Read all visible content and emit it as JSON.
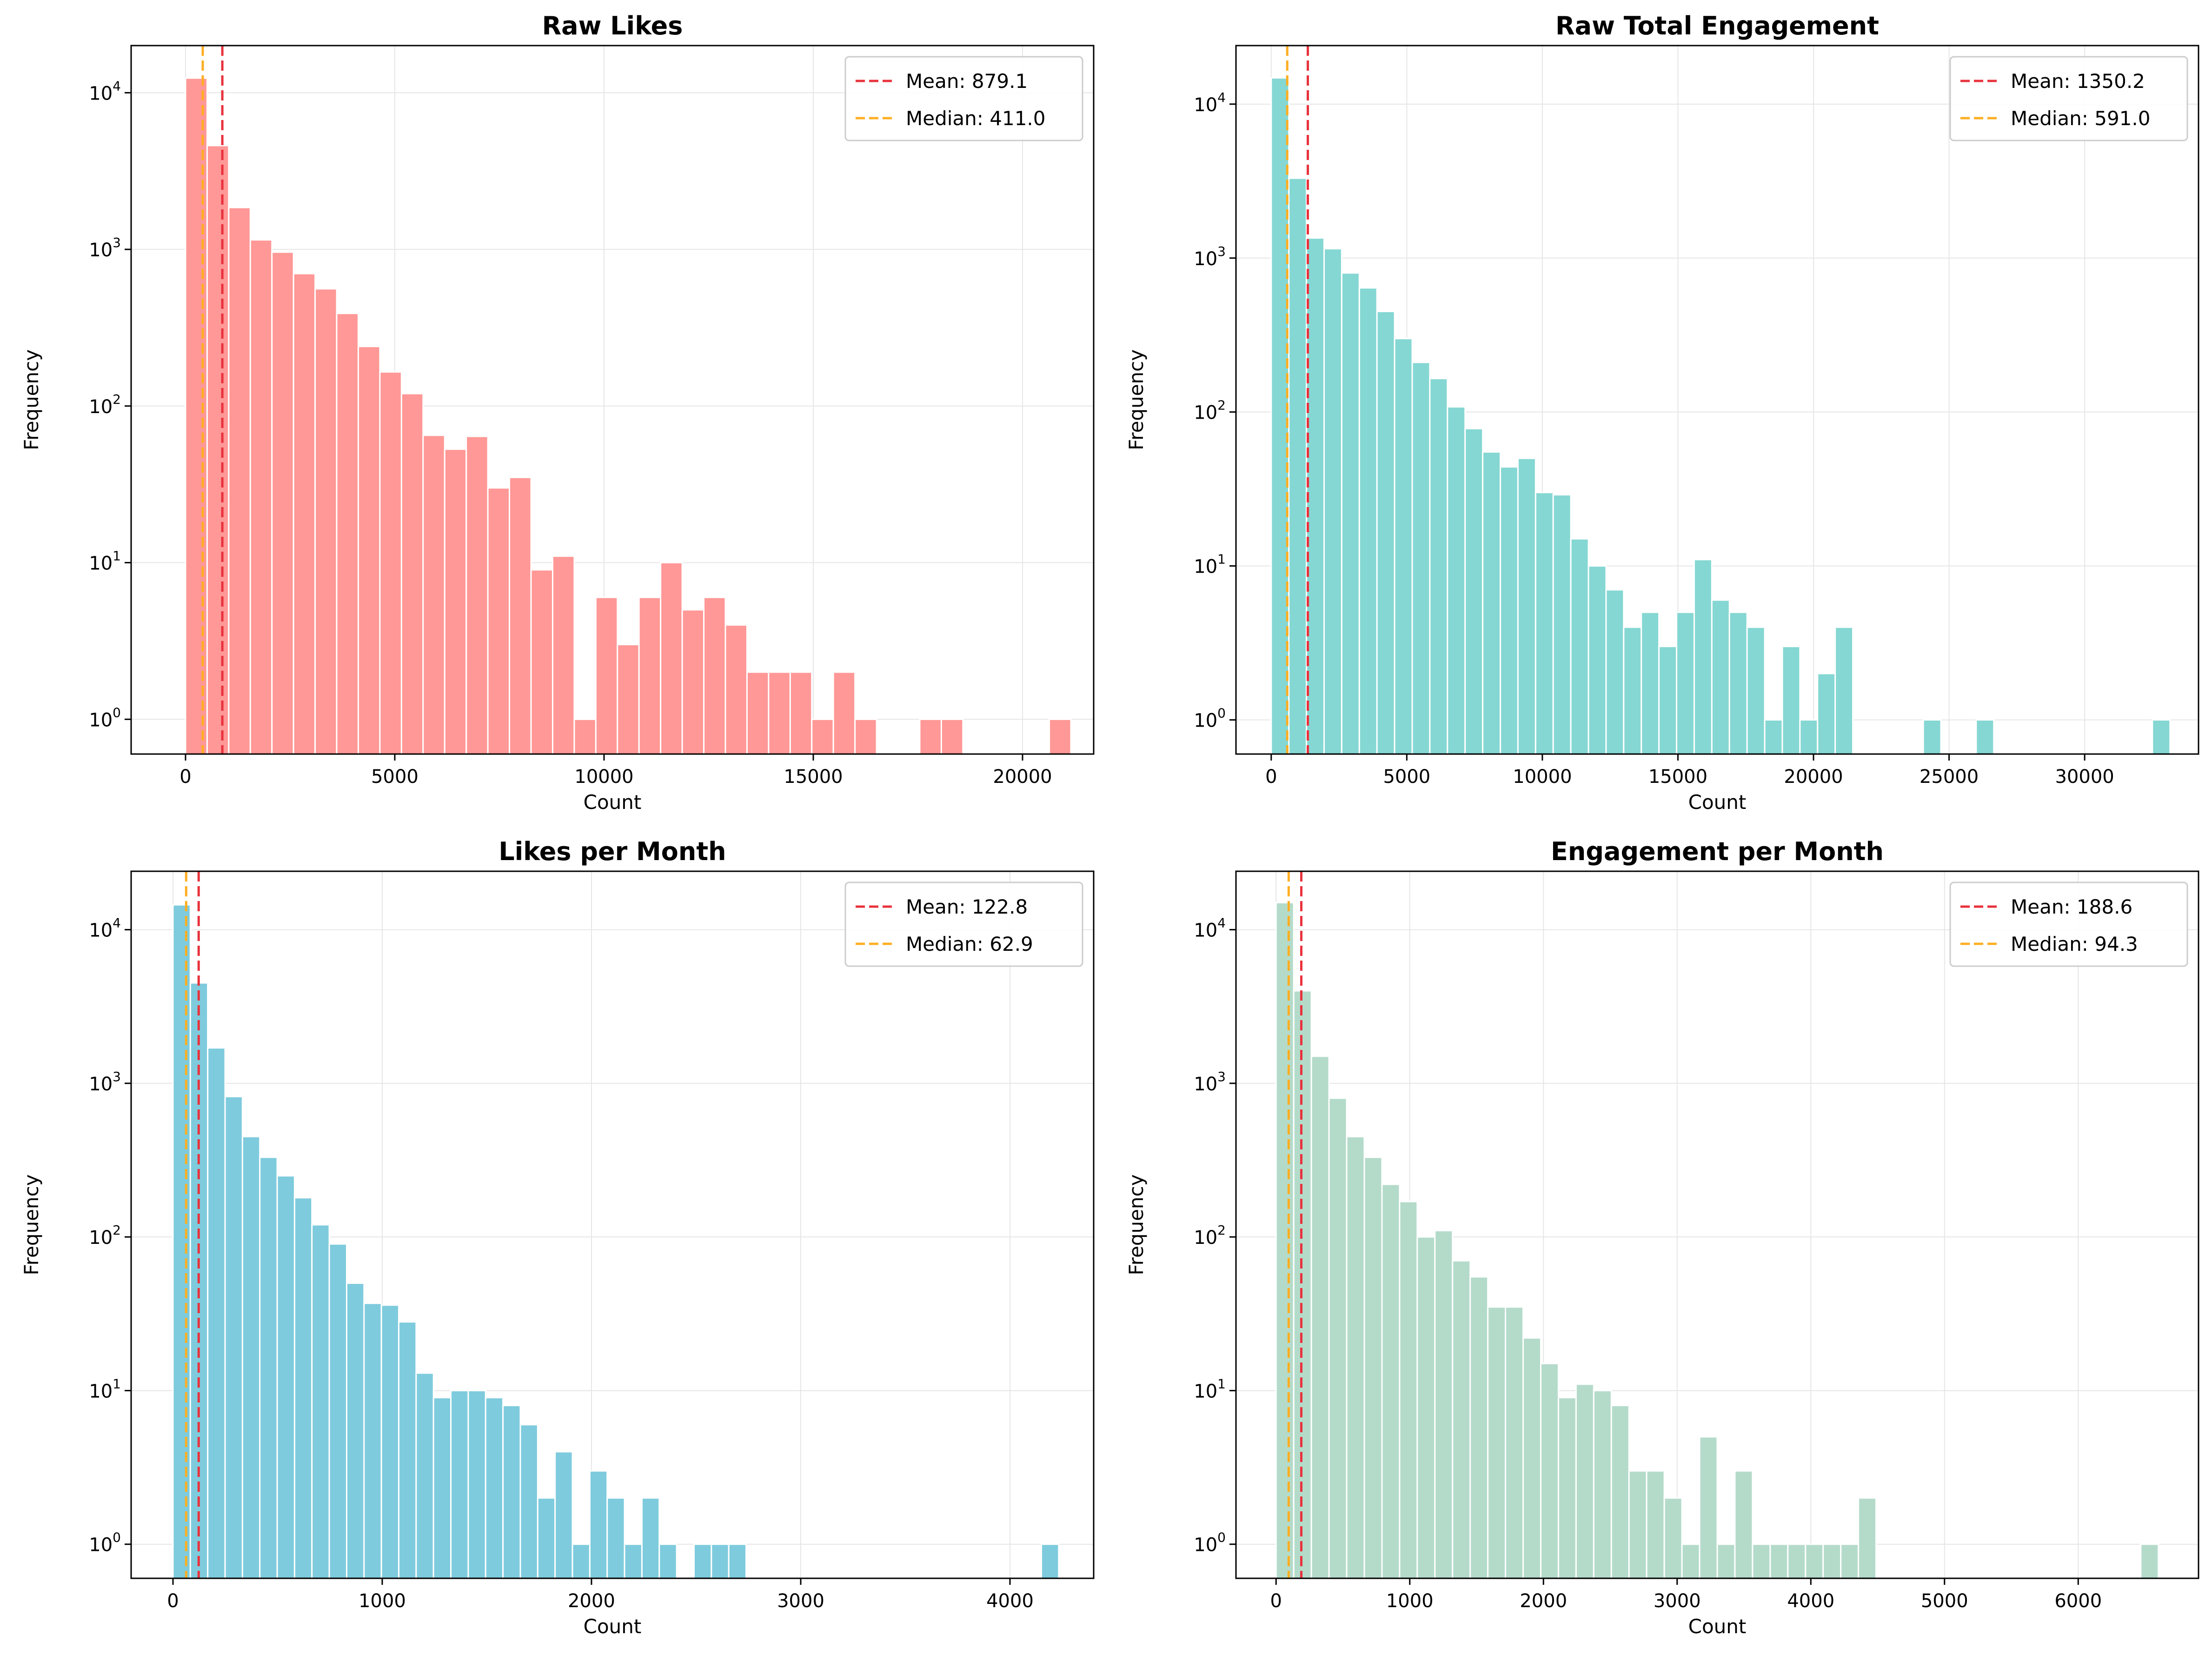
{
  "chart_data": [
    {
      "type": "bar",
      "title": "Raw Likes",
      "xlabel": "Count",
      "ylabel": "Frequency",
      "yscale": "log",
      "ylim": [
        0.6,
        20000
      ],
      "xlim": [
        -1300,
        21700
      ],
      "xticks": [
        0,
        5000,
        10000,
        15000,
        20000
      ],
      "yticks": [
        1,
        10,
        100,
        1000,
        10000
      ],
      "grid": true,
      "legend_position": "top-right",
      "color": "#ff9896",
      "bin_start": 0,
      "bin_width": 516,
      "values": [
        12400,
        4600,
        1850,
        1150,
        960,
        700,
        560,
        390,
        240,
        165,
        120,
        65,
        53,
        64,
        30,
        35,
        9,
        11,
        1,
        6,
        3,
        6,
        10,
        5,
        6,
        4,
        2,
        2,
        2,
        1,
        2,
        1,
        0,
        0,
        1,
        1,
        0,
        0,
        0,
        0,
        1
      ],
      "reference_lines": [
        {
          "label": "Mean: 879.1",
          "value": 879.1,
          "color": "#e8323c"
        },
        {
          "label": "Median: 411.0",
          "value": 411.0,
          "color": "#ffae22"
        }
      ]
    },
    {
      "type": "bar",
      "title": "Raw Total Engagement",
      "xlabel": "Count",
      "ylabel": "Frequency",
      "yscale": "log",
      "ylim": [
        0.6,
        24000
      ],
      "xlim": [
        -1300,
        34200
      ],
      "xticks": [
        0,
        5000,
        10000,
        15000,
        20000,
        25000,
        30000
      ],
      "yticks": [
        1,
        10,
        100,
        1000,
        10000
      ],
      "grid": true,
      "legend_position": "top-right",
      "color": "#85d7d3",
      "bin_start": 0,
      "bin_width": 650,
      "values": [
        14800,
        3300,
        1350,
        1150,
        800,
        640,
        450,
        300,
        210,
        165,
        108,
        78,
        55,
        44,
        50,
        30,
        29,
        15,
        10,
        7,
        4,
        5,
        3,
        5,
        11,
        6,
        5,
        4,
        1,
        3,
        1,
        2,
        4,
        0,
        0,
        0,
        0,
        1,
        0,
        0,
        1,
        0,
        0,
        0,
        0,
        0,
        0,
        0,
        0,
        0,
        1
      ],
      "reference_lines": [
        {
          "label": "Mean: 1350.2",
          "value": 1350.2,
          "color": "#e8323c"
        },
        {
          "label": "Median: 591.0",
          "value": 591.0,
          "color": "#ffae22"
        }
      ]
    },
    {
      "type": "bar",
      "title": "Likes per Month",
      "xlabel": "Count",
      "ylabel": "Frequency",
      "yscale": "log",
      "ylim": [
        0.6,
        24000
      ],
      "xlim": [
        -200,
        4400
      ],
      "xticks": [
        0,
        1000,
        2000,
        3000,
        4000
      ],
      "yticks": [
        1,
        10,
        100,
        1000,
        10000
      ],
      "grid": true,
      "legend_position": "top-right",
      "color": "#7ecbdd",
      "bin_start": 0,
      "bin_width": 83,
      "values": [
        14500,
        4500,
        1700,
        820,
        450,
        330,
        250,
        180,
        120,
        90,
        50,
        37,
        36,
        28,
        13,
        9,
        10,
        10,
        9,
        8,
        6,
        2,
        4,
        1,
        3,
        2,
        1,
        2,
        1,
        0,
        1,
        1,
        1,
        0,
        0,
        0,
        0,
        0,
        0,
        0,
        0,
        0,
        0,
        0,
        0,
        0,
        0,
        0,
        0,
        0,
        1
      ],
      "reference_lines": [
        {
          "label": "Mean: 122.8",
          "value": 122.8,
          "color": "#e8323c"
        },
        {
          "label": "Median: 62.9",
          "value": 62.9,
          "color": "#ffae22"
        }
      ]
    },
    {
      "type": "bar",
      "title": "Engagement per Month",
      "xlabel": "Count",
      "ylabel": "Frequency",
      "yscale": "log",
      "ylim": [
        0.6,
        24000
      ],
      "xlim": [
        -300,
        6900
      ],
      "xticks": [
        0,
        1000,
        2000,
        3000,
        4000,
        5000,
        6000
      ],
      "yticks": [
        1,
        10,
        100,
        1000,
        10000
      ],
      "grid": true,
      "legend_position": "top-right",
      "color": "#b4dbca",
      "bin_start": 0,
      "bin_width": 132,
      "values": [
        15000,
        4000,
        1500,
        800,
        450,
        330,
        220,
        170,
        100,
        110,
        70,
        55,
        35,
        35,
        22,
        15,
        9,
        11,
        10,
        8,
        3,
        3,
        2,
        1,
        5,
        1,
        3,
        1,
        1,
        1,
        1,
        1,
        1,
        2,
        0,
        0,
        0,
        0,
        0,
        0,
        0,
        0,
        0,
        0,
        0,
        0,
        0,
        0,
        0,
        1
      ],
      "reference_lines": [
        {
          "label": "Mean: 188.6",
          "value": 188.6,
          "color": "#e8323c"
        },
        {
          "label": "Median: 94.3",
          "value": 94.3,
          "color": "#ffae22"
        }
      ]
    }
  ]
}
